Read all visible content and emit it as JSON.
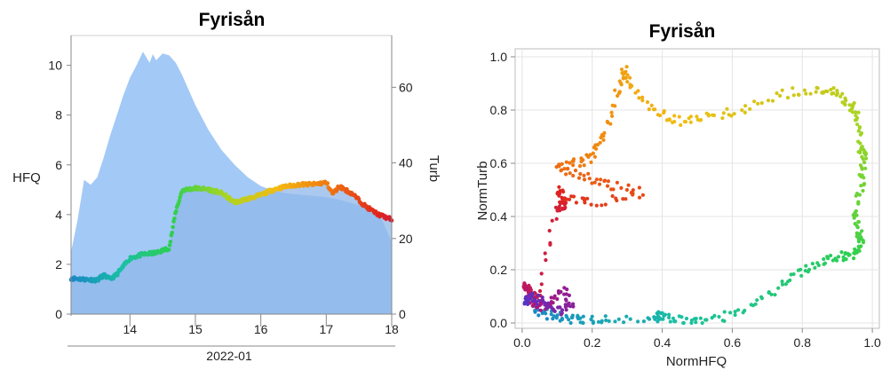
{
  "colors": {
    "hfq_area": "#a3c9f6",
    "turb_area": "#8fb7ea",
    "gradient": [
      "#1a86c7",
      "#19c0a4",
      "#2fd04d",
      "#a8d522",
      "#f2bc12",
      "#f07a10",
      "#e0231e",
      "#b1147a",
      "#5533c8"
    ]
  },
  "chart_data": [
    {
      "type": "area",
      "title": "Fyrisån",
      "xlabel": "2022-01",
      "ylabel_left": "HFQ",
      "ylabel_right": "Turb",
      "x_ticks": [
        "14",
        "15",
        "16",
        "17",
        "18"
      ],
      "x_range": [
        13.1,
        18.0
      ],
      "y_left_ticks": [
        "0",
        "2",
        "4",
        "6",
        "8",
        "10"
      ],
      "y_left_range": [
        0,
        11.2
      ],
      "y_right_ticks": [
        "0",
        "20",
        "40",
        "60"
      ],
      "y_right_range": [
        0,
        73.7
      ],
      "grid": false,
      "series": [
        {
          "axis": "left",
          "x": [
            13.1,
            13.2,
            13.3,
            13.4,
            13.5,
            13.6,
            13.7,
            13.8,
            13.9,
            14.0,
            14.1,
            14.2,
            14.3,
            14.35,
            14.4,
            14.5,
            14.6,
            14.7,
            14.8,
            14.9,
            15.0,
            15.2,
            15.4,
            15.6,
            15.8,
            16.0,
            16.2,
            16.4,
            16.6,
            16.8,
            17.0,
            17.2,
            17.4,
            17.6,
            17.8,
            17.9,
            18.0
          ],
          "values": [
            2.5,
            3.8,
            5.4,
            5.2,
            5.5,
            6.3,
            7.2,
            8.0,
            8.8,
            9.5,
            10.0,
            10.55,
            10.1,
            10.45,
            10.2,
            10.48,
            10.4,
            10.1,
            9.6,
            9.0,
            8.4,
            7.4,
            6.6,
            6.0,
            5.5,
            5.15,
            4.95,
            4.85,
            4.8,
            4.75,
            4.7,
            4.6,
            4.45,
            4.3,
            4.1,
            3.5,
            2.9
          ]
        },
        {
          "axis": "right",
          "x": [
            13.1,
            13.3,
            13.5,
            13.6,
            13.7,
            13.8,
            14.0,
            14.2,
            14.4,
            14.6,
            14.7,
            14.8,
            15.0,
            15.2,
            15.4,
            15.6,
            15.8,
            16.0,
            16.2,
            16.4,
            16.6,
            16.8,
            17.0,
            17.1,
            17.2,
            17.4,
            17.6,
            17.8,
            18.0
          ],
          "values": [
            9.5,
            9.2,
            9.0,
            10.3,
            9.2,
            10.5,
            14.8,
            15.8,
            16.2,
            17.5,
            27.2,
            32.8,
            33.3,
            33.0,
            32.0,
            29.5,
            30.5,
            31.5,
            33.0,
            33.8,
            34.3,
            34.3,
            34.8,
            31.8,
            33.8,
            31.8,
            28.5,
            26.3,
            25.0
          ]
        }
      ]
    },
    {
      "type": "scatter",
      "title": "Fyrisån",
      "xlabel": "NormHFQ",
      "ylabel": "NormTurb",
      "x_ticks": [
        "0.0",
        "0.2",
        "0.4",
        "0.6",
        "0.8",
        "1.0"
      ],
      "y_ticks": [
        "0.0",
        "0.2",
        "0.4",
        "0.6",
        "0.8",
        "1.0"
      ],
      "xlim": [
        -0.02,
        1.02
      ],
      "ylim": [
        -0.02,
        1.03
      ],
      "grid": true,
      "trajectory": {
        "x": [
          0.03,
          0.08,
          0.13,
          0.17,
          0.24,
          0.38,
          0.39,
          0.44,
          0.51,
          0.6,
          0.7,
          0.78,
          0.85,
          0.91,
          0.95,
          0.97,
          0.96,
          0.95,
          0.97,
          0.975,
          0.965,
          0.955,
          0.94,
          0.9,
          0.85,
          0.75,
          0.62,
          0.52,
          0.45,
          0.38,
          0.31,
          0.29,
          0.27,
          0.23,
          0.2,
          0.15,
          0.1,
          0.18,
          0.25,
          0.34,
          0.2,
          0.12,
          0.1,
          0.12,
          0.1,
          0.05,
          0.02,
          0.01,
          0.02,
          0.05,
          0.08,
          0.12,
          0.14,
          0.1,
          0.05,
          0.02,
          0.01
        ],
        "y": [
          0.05,
          0.03,
          0.015,
          0.01,
          0.01,
          0.02,
          0.03,
          0.01,
          0.0,
          0.03,
          0.1,
          0.18,
          0.23,
          0.25,
          0.26,
          0.3,
          0.35,
          0.42,
          0.53,
          0.62,
          0.66,
          0.78,
          0.82,
          0.87,
          0.88,
          0.86,
          0.8,
          0.77,
          0.76,
          0.79,
          0.9,
          0.96,
          0.85,
          0.7,
          0.62,
          0.6,
          0.58,
          0.55,
          0.52,
          0.49,
          0.45,
          0.47,
          0.5,
          0.44,
          0.43,
          0.1,
          0.12,
          0.14,
          0.1,
          0.06,
          0.08,
          0.12,
          0.06,
          0.04,
          0.08,
          0.1,
          0.07
        ]
      }
    }
  ]
}
